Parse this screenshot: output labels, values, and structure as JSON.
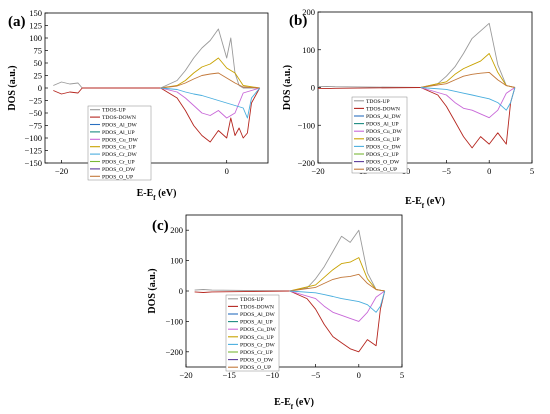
{
  "figure": {
    "legend_entries": [
      {
        "label": "TDOS-UP",
        "color": "#9a9a9a"
      },
      {
        "label": "TDOS-DOWN",
        "color": "#b5261f"
      },
      {
        "label": "PDOS_Al_DW",
        "color": "#2a6fc0"
      },
      {
        "label": "PDOS_Al_UP",
        "color": "#1a8a80"
      },
      {
        "label": "PDOS_Cu_DW",
        "color": "#c868d8"
      },
      {
        "label": "PDOS_Cu_UP",
        "color": "#c8a200"
      },
      {
        "label": "PDOS_Cr_DW",
        "color": "#4aaede"
      },
      {
        "label": "PDOS_Cr_UP",
        "color": "#7ab838"
      },
      {
        "label": "PDOS_O_DW",
        "color": "#5a3a9a"
      },
      {
        "label": "PDOS_O_UP",
        "color": "#c2783a"
      }
    ]
  },
  "chart_data": [
    {
      "type": "line",
      "panel": "(a)",
      "xlabel": "E-Ef (eV)",
      "ylabel": "DOS (a.u.)",
      "xlim": [
        -22,
        5
      ],
      "ylim": [
        -150,
        150
      ],
      "x_ticks": [
        -20,
        -10,
        0
      ],
      "y_ticks": [
        -150,
        -125,
        -100,
        -75,
        -50,
        -25,
        0,
        25,
        50,
        75,
        100,
        125,
        150
      ],
      "grid": false,
      "legend_position": "bottom-left inside plot",
      "series": [
        {
          "name": "TDOS-UP",
          "x": [
            -21,
            -20,
            -19,
            -18,
            -17.5,
            -8,
            -6,
            -5,
            -4,
            -3,
            -2,
            -1,
            0,
            0.5,
            1,
            1.5,
            2,
            4
          ],
          "y": [
            5,
            12,
            8,
            10,
            0,
            0,
            15,
            35,
            60,
            80,
            95,
            118,
            60,
            100,
            30,
            5,
            0,
            0
          ]
        },
        {
          "name": "TDOS-DOWN",
          "x": [
            -21,
            -20,
            -19,
            -18,
            -17.5,
            -8,
            -6,
            -5,
            -4,
            -3,
            -2,
            -1,
            0,
            0.5,
            1,
            1.5,
            2,
            2.5,
            3,
            4
          ],
          "y": [
            -5,
            -12,
            -8,
            -10,
            0,
            0,
            -20,
            -45,
            -75,
            -95,
            -108,
            -85,
            -100,
            -60,
            -95,
            -80,
            -100,
            -90,
            -30,
            0
          ]
        },
        {
          "name": "PDOS_Cu_UP",
          "x": [
            -8,
            -6,
            -5,
            -4,
            -3,
            -2,
            -1,
            0,
            1,
            2,
            4
          ],
          "y": [
            0,
            5,
            15,
            30,
            42,
            48,
            60,
            40,
            30,
            5,
            0
          ]
        },
        {
          "name": "PDOS_Cu_DW",
          "x": [
            -8,
            -6,
            -5,
            -4,
            -3,
            -2,
            -1,
            0,
            1,
            2,
            4
          ],
          "y": [
            0,
            -8,
            -20,
            -35,
            -50,
            -55,
            -45,
            -60,
            -50,
            -10,
            0
          ]
        },
        {
          "name": "PDOS_O_UP",
          "x": [
            -8,
            -6,
            -5,
            -4,
            -3,
            -2,
            -1,
            0,
            1,
            2,
            4
          ],
          "y": [
            0,
            4,
            10,
            18,
            25,
            28,
            30,
            20,
            10,
            2,
            0
          ]
        },
        {
          "name": "PDOS_Cr_DW",
          "x": [
            -8,
            -6,
            -5,
            -4,
            -3,
            -2,
            -1,
            0,
            1,
            2,
            2.5,
            3,
            4
          ],
          "y": [
            0,
            -3,
            -8,
            -12,
            -15,
            -20,
            -25,
            -30,
            -35,
            -40,
            -60,
            -20,
            0
          ]
        }
      ]
    },
    {
      "type": "line",
      "panel": "(b)",
      "xlabel": "E-Ef (eV)",
      "ylabel": "DOS (a.u.)",
      "xlim": [
        -20,
        5
      ],
      "ylim": [
        -200,
        200
      ],
      "x_ticks": [
        -20,
        -15,
        -10,
        -5,
        0,
        5
      ],
      "y_ticks": [
        -200,
        -100,
        0,
        100,
        200
      ],
      "grid": false,
      "legend_position": "bottom-left inside plot",
      "series": [
        {
          "name": "TDOS-UP",
          "x": [
            -20,
            -19,
            -18,
            -8,
            -6,
            -5,
            -4,
            -3,
            -2,
            -1,
            0,
            1,
            2,
            3
          ],
          "y": [
            2,
            3,
            2,
            0,
            10,
            30,
            55,
            90,
            130,
            150,
            170,
            60,
            5,
            0
          ]
        },
        {
          "name": "TDOS-DOWN",
          "x": [
            -20,
            -19,
            -18,
            -8,
            -6,
            -5,
            -4,
            -3,
            -2,
            -1,
            0,
            1,
            2,
            2.5,
            3
          ],
          "y": [
            -2,
            -3,
            -2,
            0,
            -20,
            -50,
            -90,
            -130,
            -160,
            -130,
            -150,
            -120,
            -150,
            -40,
            0
          ]
        },
        {
          "name": "PDOS_Cu_UP",
          "x": [
            -8,
            -5,
            -4,
            -3,
            -2,
            -1,
            0,
            1,
            2,
            3
          ],
          "y": [
            0,
            15,
            35,
            50,
            60,
            70,
            90,
            40,
            5,
            0
          ]
        },
        {
          "name": "PDOS_Cu_DW",
          "x": [
            -8,
            -5,
            -4,
            -3,
            -2,
            -1,
            0,
            1,
            2,
            3
          ],
          "y": [
            0,
            -20,
            -40,
            -55,
            -60,
            -70,
            -80,
            -60,
            -15,
            0
          ]
        },
        {
          "name": "PDOS_O_UP",
          "x": [
            -8,
            -5,
            -4,
            -3,
            -2,
            -1,
            0,
            1,
            2,
            3
          ],
          "y": [
            0,
            10,
            20,
            30,
            35,
            38,
            40,
            20,
            5,
            0
          ]
        },
        {
          "name": "PDOS_Cr_DW",
          "x": [
            -8,
            -5,
            -4,
            -3,
            -2,
            -1,
            0,
            1,
            2,
            2.5,
            3
          ],
          "y": [
            0,
            -5,
            -10,
            -15,
            -20,
            -25,
            -30,
            -40,
            -60,
            -40,
            0
          ]
        }
      ]
    },
    {
      "type": "line",
      "panel": "(c)",
      "xlabel": "E-Ef (eV)",
      "ylabel": "DOS (a.u.)",
      "xlim": [
        -20,
        5
      ],
      "ylim": [
        -250,
        250
      ],
      "x_ticks": [
        -20,
        -15,
        -10,
        -5,
        0,
        5
      ],
      "y_ticks": [
        -200,
        -100,
        0,
        100,
        200
      ],
      "grid": false,
      "legend_position": "bottom-left inside plot",
      "series": [
        {
          "name": "TDOS-UP",
          "x": [
            -19,
            -18,
            -17,
            -8,
            -6,
            -5,
            -4,
            -3,
            -2,
            -1,
            0,
            1,
            2,
            3
          ],
          "y": [
            3,
            5,
            3,
            0,
            10,
            40,
            80,
            130,
            180,
            160,
            200,
            60,
            5,
            0
          ]
        },
        {
          "name": "TDOS-DOWN",
          "x": [
            -19,
            -18,
            -17,
            -8,
            -6,
            -5,
            -4,
            -3,
            -2,
            -1,
            0,
            1,
            2,
            2.5,
            3
          ],
          "y": [
            -3,
            -5,
            -3,
            0,
            -25,
            -60,
            -110,
            -150,
            -170,
            -190,
            -200,
            -160,
            -180,
            -60,
            0
          ]
        },
        {
          "name": "PDOS_Cu_UP",
          "x": [
            -8,
            -5,
            -4,
            -3,
            -2,
            -1,
            0,
            1,
            2,
            3
          ],
          "y": [
            0,
            20,
            45,
            70,
            90,
            95,
            110,
            40,
            5,
            0
          ]
        },
        {
          "name": "PDOS_Cu_DW",
          "x": [
            -8,
            -5,
            -4,
            -3,
            -2,
            -1,
            0,
            1,
            2,
            3
          ],
          "y": [
            0,
            -25,
            -50,
            -70,
            -80,
            -90,
            -100,
            -70,
            -20,
            0
          ]
        },
        {
          "name": "PDOS_O_UP",
          "x": [
            -8,
            -5,
            -4,
            -3,
            -2,
            -1,
            0,
            1,
            2,
            3
          ],
          "y": [
            0,
            12,
            25,
            38,
            45,
            48,
            55,
            25,
            5,
            0
          ]
        },
        {
          "name": "PDOS_Cr_DW",
          "x": [
            -8,
            -5,
            -4,
            -3,
            -2,
            -1,
            0,
            1,
            2,
            2.5,
            3
          ],
          "y": [
            0,
            -6,
            -12,
            -18,
            -25,
            -30,
            -35,
            -45,
            -70,
            -50,
            0
          ]
        }
      ]
    }
  ]
}
